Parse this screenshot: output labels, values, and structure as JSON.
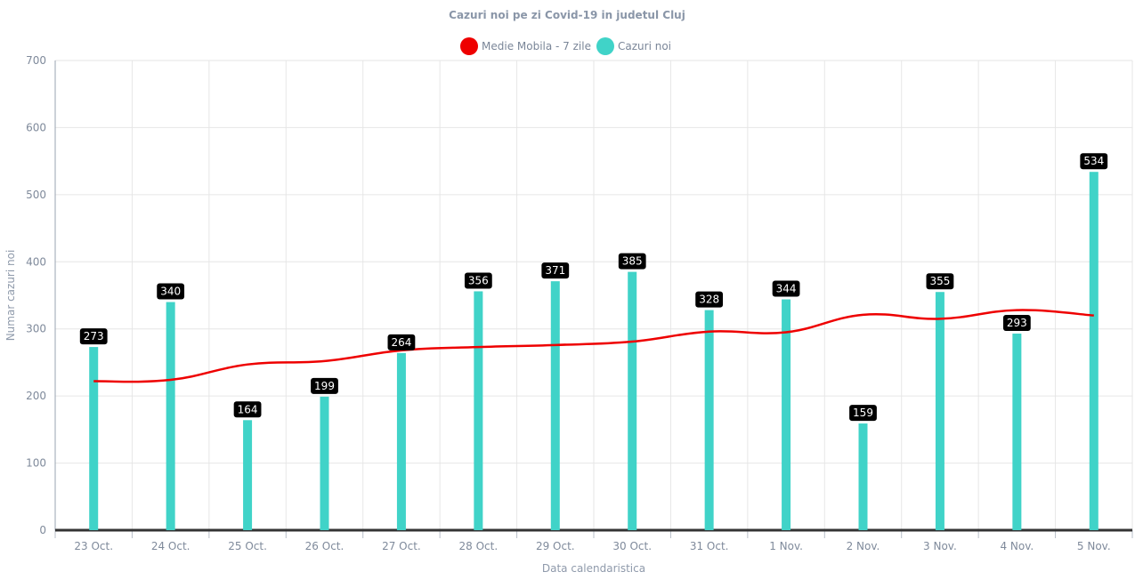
{
  "chart_data": {
    "type": "bar",
    "title": "Cazuri noi pe zi Covid-19 in judetul Cluj",
    "xlabel": "Data calendaristica",
    "ylabel": "Numar cazuri noi",
    "ylim": [
      0,
      700
    ],
    "yticks": [
      0,
      100,
      200,
      300,
      400,
      500,
      600,
      700
    ],
    "categories": [
      "23 Oct.",
      "24 Oct.",
      "25 Oct.",
      "26 Oct.",
      "27 Oct.",
      "28 Oct.",
      "29 Oct.",
      "30 Oct.",
      "31 Oct.",
      "1 Nov.",
      "2 Nov.",
      "3 Nov.",
      "4 Nov.",
      "5 Nov."
    ],
    "legend_position": "top-center",
    "grid": true,
    "series": [
      {
        "name": "Medie Mobila - 7 zile",
        "type": "line",
        "color": "#ee0000",
        "values": [
          222,
          224,
          247,
          252,
          268,
          273,
          276,
          281,
          296,
          295,
          321,
          315,
          328,
          320
        ]
      },
      {
        "name": "Cazuri noi",
        "type": "bar",
        "color": "#40d3c8",
        "values": [
          273,
          340,
          164,
          199,
          264,
          356,
          371,
          385,
          328,
          344,
          159,
          355,
          293,
          534
        ]
      }
    ]
  }
}
